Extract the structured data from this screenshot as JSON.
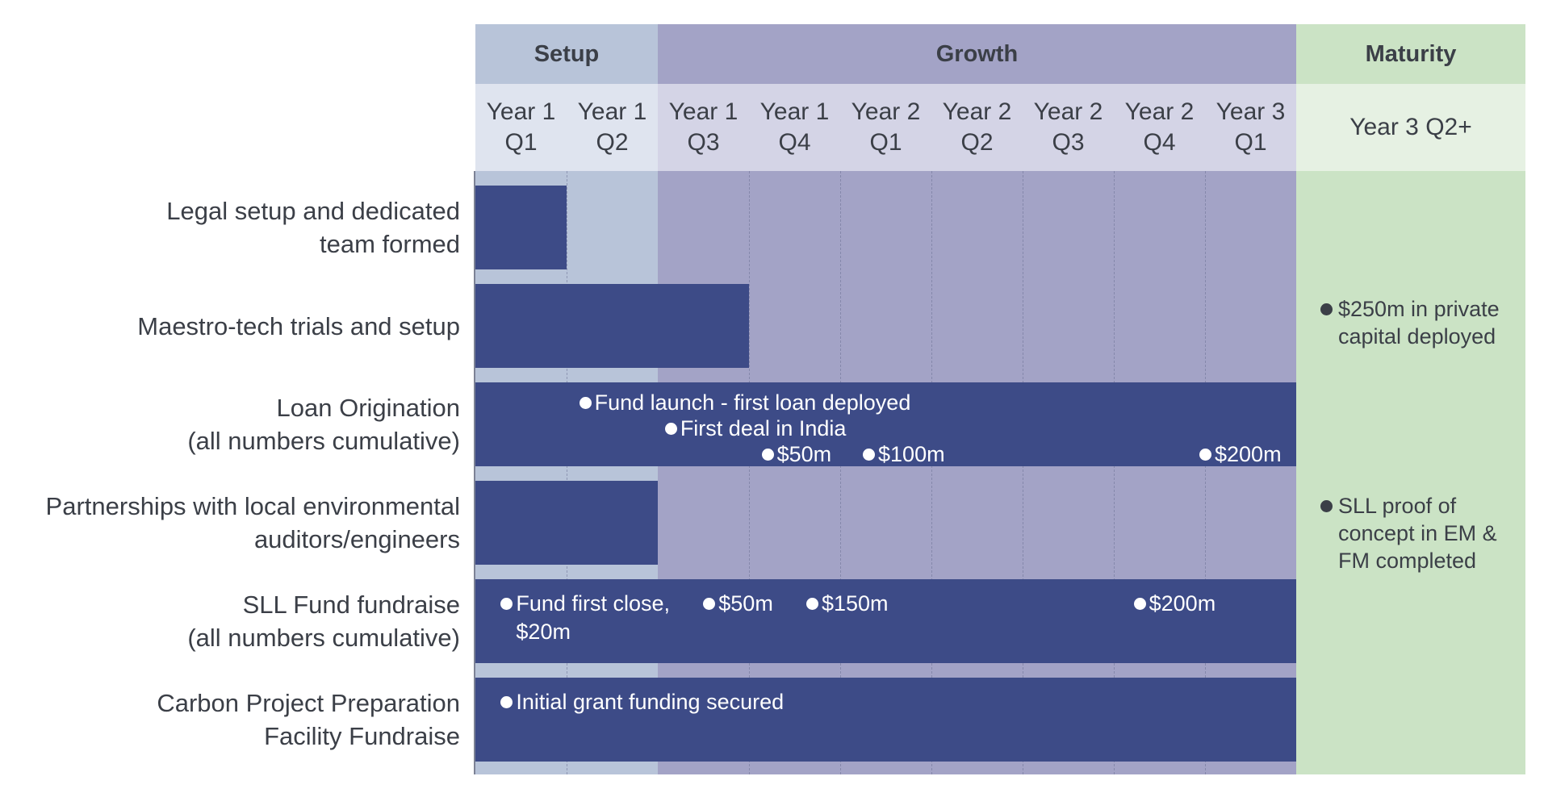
{
  "phases": [
    {
      "label": "Setup",
      "header_bg": "#b8c4d9",
      "body_bg": "#b8c4d9"
    },
    {
      "label": "Growth",
      "header_bg": "#a3a3c6",
      "body_bg": "#a3a3c6"
    },
    {
      "label": "Maturity",
      "header_bg": "#cbe3c5",
      "body_bg": "#cbe3c5"
    }
  ],
  "columns": [
    {
      "line1": "Year 1",
      "line2": "Q1"
    },
    {
      "line1": "Year 1",
      "line2": "Q2"
    },
    {
      "line1": "Year 1",
      "line2": "Q3"
    },
    {
      "line1": "Year 1",
      "line2": "Q4"
    },
    {
      "line1": "Year 2",
      "line2": "Q1"
    },
    {
      "line1": "Year 2",
      "line2": "Q2"
    },
    {
      "line1": "Year 2",
      "line2": "Q3"
    },
    {
      "line1": "Year 2",
      "line2": "Q4"
    },
    {
      "line1": "Year 3",
      "line2": "Q1"
    },
    {
      "line1": "Year 3 Q2+",
      "line2": ""
    }
  ],
  "column_header_bgs": {
    "Setup": "#dfe4ef",
    "Growth": "#d4d4e6",
    "Maturity": "#e6f1e3"
  },
  "rows": [
    {
      "label_lines": [
        "Legal setup and dedicated",
        "team formed"
      ],
      "bar_start_quarter": 0,
      "bar_end_quarter": 1,
      "milestones": []
    },
    {
      "label_lines": [
        "Maestro-tech trials and setup"
      ],
      "bar_start_quarter": 0,
      "bar_end_quarter": 3,
      "milestones": []
    },
    {
      "label_lines": [
        "Loan Origination",
        "(all numbers cumulative)"
      ],
      "bar_start_quarter": 0,
      "bar_end_quarter": 9,
      "milestones": [
        {
          "text": "Fund launch - first loan deployed",
          "quarter": 1.2,
          "line": 0
        },
        {
          "text": "First deal in India",
          "quarter": 2.14,
          "line": 1
        },
        {
          "text": "$50m",
          "quarter": 3.2,
          "line": 2
        },
        {
          "text": "$100m",
          "quarter": 4.31,
          "line": 2
        },
        {
          "text": "$200m",
          "quarter": 8.0,
          "line": 2
        }
      ]
    },
    {
      "label_lines": [
        "Partnerships with local environmental",
        "auditors/engineers"
      ],
      "bar_start_quarter": 0,
      "bar_end_quarter": 2,
      "milestones": []
    },
    {
      "label_lines": [
        "SLL Fund fundraise",
        "(all numbers cumulative)"
      ],
      "bar_start_quarter": 0,
      "bar_end_quarter": 9,
      "milestones": [
        {
          "text": "Fund first close,\n$20m",
          "quarter": 0.34,
          "line": 0
        },
        {
          "text": "$50m",
          "quarter": 2.56,
          "line": 0
        },
        {
          "text": "$150m",
          "quarter": 3.69,
          "line": 0
        },
        {
          "text": "$200m",
          "quarter": 7.28,
          "line": 0
        }
      ]
    },
    {
      "label_lines": [
        "Carbon Project Preparation",
        "Facility Fundraise"
      ],
      "bar_start_quarter": 0,
      "bar_end_quarter": 9,
      "milestones": [
        {
          "text": "Initial grant funding secured",
          "quarter": 0.34,
          "line": 0
        }
      ]
    }
  ],
  "maturity_notes": [
    {
      "lines": [
        "$250m in private",
        "capital deployed"
      ],
      "row": 1
    },
    {
      "lines": [
        "SLL proof of",
        "concept in EM &",
        "FM completed"
      ],
      "row": 3
    }
  ],
  "colors": {
    "bar": "#3d4b87",
    "text": "#3b3f47",
    "milestone_text": "#ffffff"
  }
}
